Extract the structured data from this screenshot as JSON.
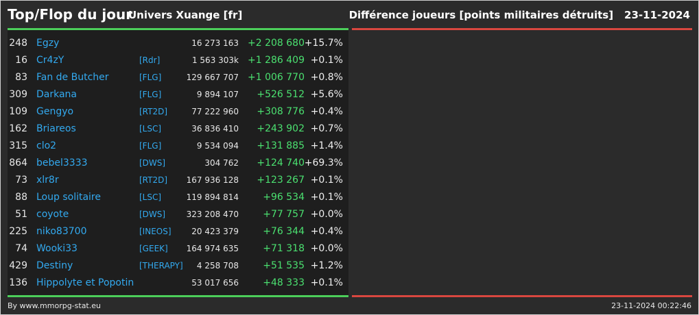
{
  "header": {
    "title": "Top/Flop du jour",
    "subtitle": "Univers Xuange [fr]",
    "metric": "Différence joueurs [points militaires détruits]",
    "date": "23-11-2024"
  },
  "colors": {
    "background": "#2b2b2b",
    "panel": "#1e1e1e",
    "top_accent": "#4ccf5a",
    "flop_accent": "#d9473f",
    "link": "#33aaf0",
    "positive": "#4be070"
  },
  "rows": [
    {
      "rank": "248",
      "name": "Egzy",
      "alliance": "",
      "points": "16 273 163",
      "diff": "+2 208 680",
      "pct": "+15.7%"
    },
    {
      "rank": "16",
      "name": "Cr4zY",
      "alliance": "[Rdr]",
      "points": "1 563 303k",
      "diff": "+1 286 409",
      "pct": "+0.1%"
    },
    {
      "rank": "83",
      "name": "Fan de Butcher",
      "alliance": "[FLG]",
      "points": "129 667 707",
      "diff": "+1 006 770",
      "pct": "+0.8%"
    },
    {
      "rank": "309",
      "name": "Darkana",
      "alliance": "[FLG]",
      "points": "9 894 107",
      "diff": "+526 512",
      "pct": "+5.6%"
    },
    {
      "rank": "109",
      "name": "Gengyo",
      "alliance": "[RT2D]",
      "points": "77 222 960",
      "diff": "+308 776",
      "pct": "+0.4%"
    },
    {
      "rank": "162",
      "name": "Briareos",
      "alliance": "[LSC]",
      "points": "36 836 410",
      "diff": "+243 902",
      "pct": "+0.7%"
    },
    {
      "rank": "315",
      "name": "clo2",
      "alliance": "[FLG]",
      "points": "9 534 094",
      "diff": "+131 885",
      "pct": "+1.4%"
    },
    {
      "rank": "864",
      "name": "bebel3333",
      "alliance": "[DWS]",
      "points": "304 762",
      "diff": "+124 740",
      "pct": "+69.3%"
    },
    {
      "rank": "73",
      "name": "xlr8r",
      "alliance": "[RT2D]",
      "points": "167 936 128",
      "diff": "+123 267",
      "pct": "+0.1%"
    },
    {
      "rank": "88",
      "name": "Loup solitaire",
      "alliance": "[LSC]",
      "points": "119 894 814",
      "diff": "+96 534",
      "pct": "+0.1%"
    },
    {
      "rank": "51",
      "name": "coyote",
      "alliance": "[DWS]",
      "points": "323 208 470",
      "diff": "+77 757",
      "pct": "+0.0%"
    },
    {
      "rank": "225",
      "name": "niko83700",
      "alliance": "[INEOS]",
      "points": "20 423 379",
      "diff": "+76 344",
      "pct": "+0.4%"
    },
    {
      "rank": "74",
      "name": "Wooki33",
      "alliance": "[GEEK]",
      "points": "164 974 635",
      "diff": "+71 318",
      "pct": "+0.0%"
    },
    {
      "rank": "429",
      "name": "Destiny",
      "alliance": "[THERAPY]",
      "points": "4 258 708",
      "diff": "+51 535",
      "pct": "+1.2%"
    },
    {
      "rank": "136",
      "name": "Hippolyte et Popotin",
      "alliance": "",
      "points": "53 017 656",
      "diff": "+48 333",
      "pct": "+0.1%"
    }
  ],
  "footer": {
    "credit": "By www.mmorpg-stat.eu",
    "timestamp": "23-11-2024 00:22:46"
  }
}
